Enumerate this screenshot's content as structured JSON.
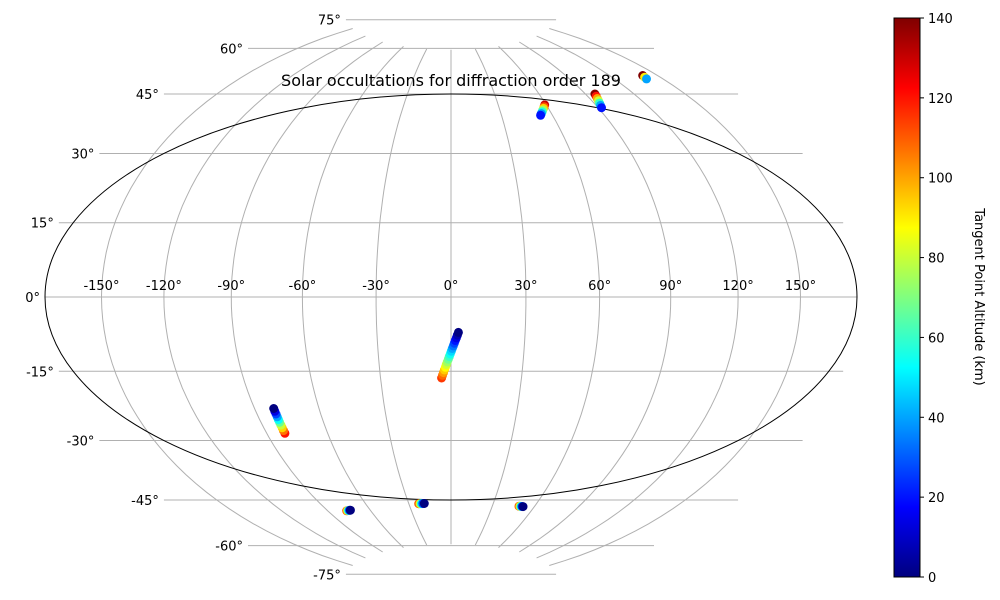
{
  "chart_data": {
    "type": "scatter",
    "projection": "hammer",
    "title": "Solar occultations for diffraction order 189",
    "lon_ticks": [
      "-150°",
      "-120°",
      "-90°",
      "-60°",
      "-30°",
      "0°",
      "30°",
      "60°",
      "90°",
      "120°",
      "150°"
    ],
    "lat_ticks": [
      "75°",
      "60°",
      "45°",
      "30°",
      "15°",
      "0°",
      "-15°",
      "-30°",
      "-45°",
      "-60°",
      "-75°"
    ],
    "grid": true,
    "colorbar": {
      "label": "Tangent Point Altitude (km)",
      "colormap": "jet",
      "range": [
        0,
        140
      ],
      "ticks": [
        "0",
        "20",
        "40",
        "60",
        "80",
        "100",
        "120",
        "140"
      ]
    },
    "series": [
      {
        "lon_start": -81,
        "lat_start": -30,
        "alt_start": 0,
        "lon_end": -81,
        "lat_end": -37,
        "alt_end": 120,
        "n": 10
      },
      {
        "lon_start": 3,
        "lat_start": -10,
        "alt_start": 0,
        "lon_end": -4,
        "lat_end": -23,
        "alt_end": 115,
        "n": 18
      },
      {
        "lon_start": -74,
        "lat_start": -61,
        "alt_start": 0,
        "lon_end": -77,
        "lat_end": -61,
        "alt_end": 110,
        "n": 5
      },
      {
        "lon_start": -19,
        "lat_start": -61,
        "alt_start": 0,
        "lon_end": -23,
        "lat_end": -61,
        "alt_end": 110,
        "n": 5
      },
      {
        "lon_start": 52,
        "lat_start": -61,
        "alt_start": 0,
        "lon_end": 49,
        "lat_end": -61,
        "alt_end": 110,
        "n": 5
      },
      {
        "lon_start": 53,
        "lat_start": 52,
        "alt_start": 20,
        "lon_end": 59,
        "lat_end": 55,
        "alt_end": 130,
        "n": 7
      },
      {
        "lon_start": 92,
        "lat_start": 52,
        "alt_start": 20,
        "lon_end": 96,
        "lat_end": 56,
        "alt_end": 140,
        "n": 7
      },
      {
        "lon_start": 140,
        "lat_start": 56,
        "alt_start": 40,
        "lon_end": 141,
        "lat_end": 57,
        "alt_end": 140,
        "n": 3
      }
    ]
  }
}
